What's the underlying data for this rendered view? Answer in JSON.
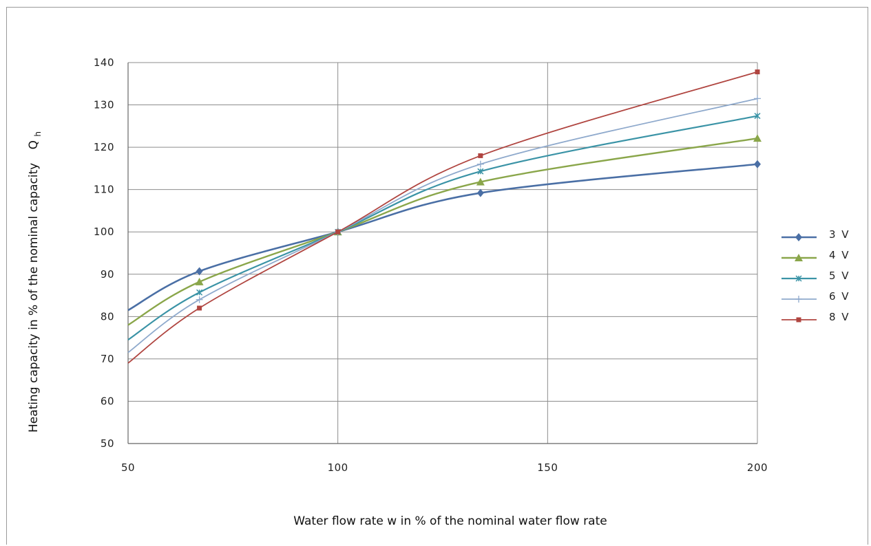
{
  "chart_data": {
    "type": "line",
    "xlabel": "Water flow rate w in % of the nominal water flow rate",
    "ylabel": "Heating capacity in % of the nominal capacity",
    "ylabel_symbol": "Q",
    "ylabel_subscript": "h",
    "xlim": [
      50,
      200
    ],
    "ylim": [
      50,
      140
    ],
    "x_ticks": [
      50,
      100,
      150,
      200
    ],
    "y_ticks": [
      50,
      60,
      70,
      80,
      90,
      100,
      110,
      120,
      130,
      140
    ],
    "grid": true,
    "legend_position": "right",
    "series": [
      {
        "name": "3 V",
        "color": "#4a6fa5",
        "marker": "diamond",
        "x": [
          50,
          67,
          100,
          134,
          200
        ],
        "y": [
          81.5,
          90.7,
          100,
          109.2,
          116
        ]
      },
      {
        "name": "4 V",
        "color": "#8aa64a",
        "marker": "triangle",
        "x": [
          50,
          67,
          100,
          134,
          200
        ],
        "y": [
          78,
          88.2,
          100,
          111.8,
          122.1
        ]
      },
      {
        "name": "5 V",
        "color": "#3a93a6",
        "marker": "star",
        "x": [
          50,
          67,
          100,
          134,
          200
        ],
        "y": [
          74.5,
          85.7,
          100,
          114.3,
          127.4
        ]
      },
      {
        "name": "6 V",
        "color": "#8ea9cc",
        "marker": "plus",
        "x": [
          50,
          67,
          100,
          134,
          200
        ],
        "y": [
          71.5,
          84,
          100,
          116,
          131.5
        ]
      },
      {
        "name": "8 V",
        "color": "#b04540",
        "marker": "square",
        "x": [
          50,
          67,
          100,
          134,
          200
        ],
        "y": [
          69,
          82,
          100,
          118,
          137.8
        ]
      }
    ]
  }
}
